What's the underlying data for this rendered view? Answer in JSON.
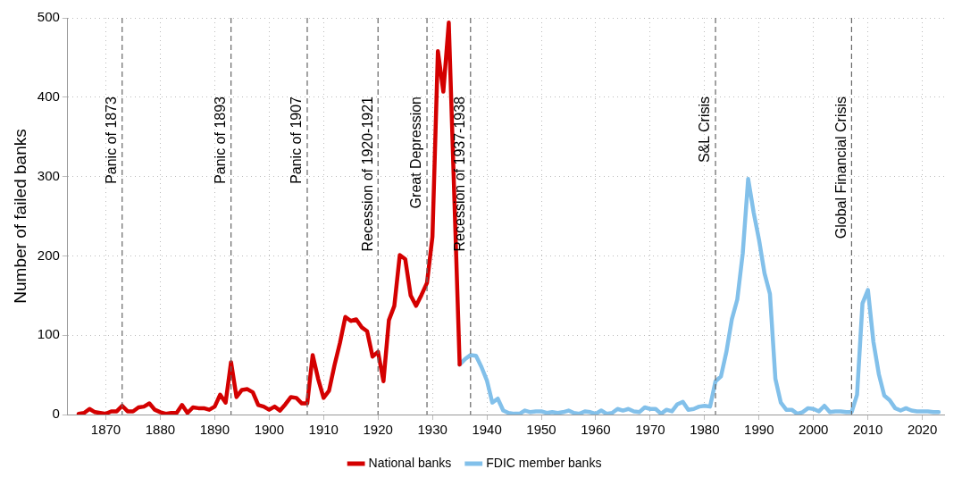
{
  "chart_data": {
    "type": "line",
    "ylabel": "Number of failed banks",
    "xlim": [
      1863,
      2024
    ],
    "xticks": [
      1870,
      1880,
      1890,
      1900,
      1910,
      1920,
      1930,
      1940,
      1950,
      1960,
      1970,
      1980,
      1990,
      2000,
      2010,
      2020
    ],
    "ylim": [
      0,
      500
    ],
    "yticks": [
      0,
      100,
      200,
      300,
      400,
      500
    ],
    "grid": true,
    "legend": "bottom",
    "line_style": "solid",
    "marker": "none",
    "series": [
      {
        "name": "National banks",
        "color": "#d40000",
        "x": [
          1865,
          1866,
          1867,
          1868,
          1869,
          1870,
          1871,
          1872,
          1873,
          1874,
          1875,
          1876,
          1877,
          1878,
          1879,
          1880,
          1881,
          1882,
          1883,
          1884,
          1885,
          1886,
          1887,
          1888,
          1889,
          1890,
          1891,
          1892,
          1893,
          1894,
          1895,
          1896,
          1897,
          1898,
          1899,
          1900,
          1901,
          1902,
          1903,
          1904,
          1905,
          1906,
          1907,
          1908,
          1909,
          1910,
          1911,
          1912,
          1913,
          1914,
          1915,
          1916,
          1917,
          1918,
          1919,
          1920,
          1921,
          1922,
          1923,
          1924,
          1925,
          1926,
          1927,
          1928,
          1929,
          1930,
          1931,
          1932,
          1933,
          1935
        ],
        "values": [
          1,
          2,
          7,
          3,
          2,
          1,
          4,
          4,
          11,
          4,
          4,
          9,
          10,
          14,
          6,
          3,
          1,
          2,
          2,
          12,
          2,
          9,
          8,
          8,
          6,
          10,
          25,
          15,
          66,
          22,
          31,
          32,
          28,
          12,
          10,
          6,
          10,
          5,
          13,
          22,
          21,
          14,
          14,
          75,
          45,
          21,
          30,
          62,
          90,
          123,
          118,
          120,
          110,
          105,
          73,
          79,
          42,
          119,
          137,
          201,
          196,
          150,
          137,
          151,
          166,
          224,
          458,
          407,
          494,
          63
        ]
      },
      {
        "name": "FDIC member banks",
        "color": "#82c0ea",
        "x": [
          1935,
          1936,
          1937,
          1938,
          1939,
          1940,
          1941,
          1942,
          1943,
          1944,
          1945,
          1946,
          1947,
          1948,
          1949,
          1950,
          1951,
          1952,
          1953,
          1954,
          1955,
          1956,
          1957,
          1958,
          1959,
          1960,
          1961,
          1962,
          1963,
          1964,
          1965,
          1966,
          1967,
          1968,
          1969,
          1970,
          1971,
          1972,
          1973,
          1974,
          1975,
          1976,
          1977,
          1978,
          1979,
          1980,
          1981,
          1982,
          1983,
          1984,
          1985,
          1986,
          1987,
          1988,
          1989,
          1990,
          1991,
          1992,
          1993,
          1994,
          1995,
          1996,
          1997,
          1998,
          1999,
          2000,
          2001,
          2002,
          2003,
          2004,
          2005,
          2006,
          2007,
          2008,
          2009,
          2010,
          2011,
          2012,
          2013,
          2014,
          2015,
          2016,
          2017,
          2018,
          2019,
          2020,
          2021,
          2022,
          2023
        ],
        "values": [
          63,
          70,
          75,
          74,
          60,
          43,
          15,
          20,
          5,
          2,
          1,
          1,
          5,
          3,
          4,
          4,
          2,
          3,
          2,
          3,
          5,
          2,
          1,
          4,
          3,
          1,
          5,
          1,
          2,
          7,
          5,
          7,
          4,
          3,
          9,
          7,
          7,
          1,
          6,
          4,
          13,
          16,
          6,
          7,
          10,
          11,
          10,
          42,
          48,
          79,
          120,
          145,
          203,
          297,
          255,
          220,
          178,
          152,
          45,
          15,
          6,
          6,
          1,
          3,
          8,
          7,
          4,
          11,
          3,
          4,
          4,
          3,
          3,
          25,
          140,
          157,
          92,
          51,
          24,
          18,
          8,
          5,
          8,
          5,
          4,
          4,
          4,
          3,
          3
        ]
      }
    ],
    "ref_lines": [
      {
        "axis": "x",
        "value": 1873,
        "label": "Panic of 1873",
        "color": "#666666",
        "line_style": "dashed"
      },
      {
        "axis": "x",
        "value": 1893,
        "label": "Panic of 1893",
        "color": "#666666",
        "line_style": "dashed"
      },
      {
        "axis": "x",
        "value": 1907,
        "label": "Panic of 1907",
        "color": "#666666",
        "line_style": "dashed"
      },
      {
        "axis": "x",
        "value": 1920,
        "label": "Recession of 1920-1921",
        "color": "#666666",
        "line_style": "dashed"
      },
      {
        "axis": "x",
        "value": 1929,
        "label": "Great Depression",
        "color": "#666666",
        "line_style": "dashed"
      },
      {
        "axis": "x",
        "value": 1937,
        "label": "Recession of 1937-1938",
        "color": "#666666",
        "line_style": "dashed"
      },
      {
        "axis": "x",
        "value": 1982,
        "label": "S&L Crisis",
        "color": "#666666",
        "line_style": "dashed"
      },
      {
        "axis": "x",
        "value": 2007,
        "label": "Global Financial Crisis",
        "color": "#666666",
        "line_style": "dashed"
      }
    ]
  }
}
